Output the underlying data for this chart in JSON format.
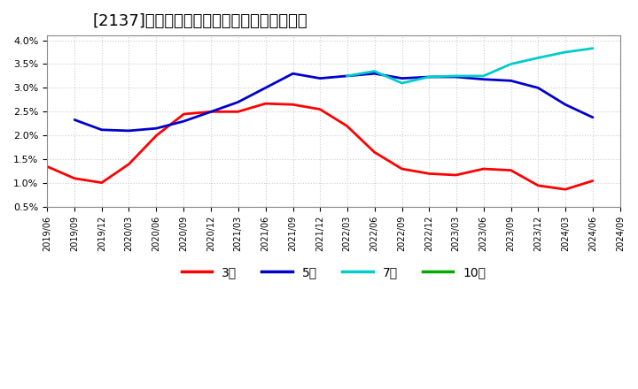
{
  "title": "[2137]　経常利益マージンの標準偏差の推移",
  "title_fontsize": 13,
  "background_color": "#ffffff",
  "plot_bg_color": "#ffffff",
  "grid_color": "#cccccc",
  "ylim": [
    0.005,
    0.041
  ],
  "yticks": [
    0.005,
    0.01,
    0.015,
    0.02,
    0.025,
    0.03,
    0.035,
    0.04
  ],
  "ytick_labels": [
    "0.5%",
    "1.0%",
    "1.5%",
    "2.0%",
    "2.5%",
    "3.0%",
    "3.5%",
    "4.0%"
  ],
  "series": {
    "3年": {
      "color": "#ff0000",
      "x": [
        "2019-06",
        "2019-09",
        "2019-12",
        "2020-03",
        "2020-06",
        "2020-09",
        "2020-12",
        "2021-03",
        "2021-06",
        "2021-09",
        "2021-12",
        "2022-03",
        "2022-06",
        "2022-09",
        "2022-12",
        "2023-03",
        "2023-06",
        "2023-09",
        "2023-12",
        "2024-03",
        "2024-06",
        "2024-09"
      ],
      "y": [
        0.0135,
        0.011,
        0.0101,
        0.014,
        0.02,
        0.0245,
        0.025,
        0.025,
        0.0267,
        0.0265,
        0.0255,
        0.022,
        0.0165,
        0.013,
        0.012,
        0.0117,
        0.013,
        0.0127,
        0.0095,
        0.0087,
        0.0105,
        null
      ]
    },
    "5年": {
      "color": "#0000cc",
      "x": [
        "2019-09",
        "2019-12",
        "2020-03",
        "2020-06",
        "2020-09",
        "2020-12",
        "2021-03",
        "2021-06",
        "2021-09",
        "2021-12",
        "2022-03",
        "2022-06",
        "2022-09",
        "2022-12",
        "2023-03",
        "2023-06",
        "2023-09",
        "2023-12",
        "2024-03",
        "2024-06",
        "2024-09"
      ],
      "y": [
        0.0233,
        0.0212,
        0.021,
        0.0215,
        0.023,
        0.025,
        0.027,
        0.03,
        0.033,
        0.032,
        0.0325,
        0.033,
        0.032,
        0.0323,
        0.0323,
        0.0318,
        0.0315,
        0.03,
        0.0265,
        0.0238,
        null
      ]
    },
    "7年": {
      "color": "#00cccc",
      "x": [
        "2022-03",
        "2022-06",
        "2022-09",
        "2022-12",
        "2023-03",
        "2023-06",
        "2023-09",
        "2023-12",
        "2024-03",
        "2024-06",
        "2024-09"
      ],
      "y": [
        0.0325,
        0.0335,
        0.031,
        0.0323,
        0.0325,
        0.0325,
        0.035,
        0.0363,
        0.0375,
        0.0383,
        null
      ]
    },
    "10年": {
      "color": "#00aa00",
      "x": [],
      "y": []
    }
  },
  "legend_labels": [
    "3年",
    "5年",
    "7年",
    "10年"
  ],
  "legend_colors": [
    "#ff0000",
    "#0000cc",
    "#00cccc",
    "#00aa00"
  ],
  "xtick_dates": [
    "2019/06",
    "2019/09",
    "2019/12",
    "2020/03",
    "2020/06",
    "2020/09",
    "2020/12",
    "2021/03",
    "2021/06",
    "2021/09",
    "2021/12",
    "2022/03",
    "2022/06",
    "2022/09",
    "2022/12",
    "2023/03",
    "2023/06",
    "2023/09",
    "2023/12",
    "2024/03",
    "2024/06",
    "2024/09"
  ]
}
